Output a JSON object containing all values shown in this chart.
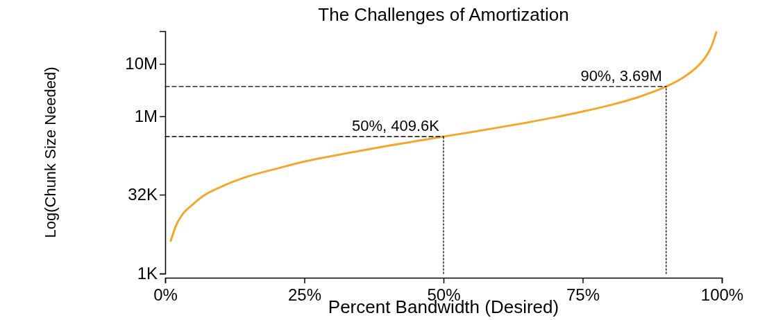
{
  "chart_data": {
    "type": "line",
    "title": "The Challenges of Amortization",
    "xlabel": "Percent Bandwidth (Desired)",
    "ylabel": "Log(Chunk Size Needed)",
    "log": "y",
    "marker": "none",
    "line_style": "solid",
    "grid": false,
    "xlim": [
      0,
      100
    ],
    "xticks": [
      {
        "value": 0,
        "label": "0%"
      },
      {
        "value": 25,
        "label": "25%"
      },
      {
        "value": 50,
        "label": "50%"
      },
      {
        "value": 75,
        "label": "75%"
      },
      {
        "value": 100,
        "label": "100%"
      }
    ],
    "ylim": [
      1000,
      42000000
    ],
    "yticks": [
      {
        "value": 1000,
        "label": "1K"
      },
      {
        "value": 32000,
        "label": "32K"
      },
      {
        "value": 1000000,
        "label": "1M"
      },
      {
        "value": 10000000,
        "label": "10M"
      }
    ],
    "series": [
      {
        "color": "#f0a830",
        "x": [
          1,
          2,
          3,
          5,
          7,
          10,
          15,
          20,
          25,
          30,
          35,
          40,
          45,
          50,
          55,
          60,
          65,
          70,
          75,
          80,
          85,
          90,
          93,
          95,
          97,
          98,
          99
        ],
        "values": [
          4200,
          8500,
          13000,
          21000,
          31000,
          45000,
          72000,
          100000,
          137000,
          175000,
          220000,
          273000,
          335000,
          409600,
          500000,
          615000,
          760000,
          955000,
          1230000,
          1640000,
          2320000,
          3690000,
          5440000,
          7780000,
          13200000,
          20000000,
          40000000
        ]
      },
      {
        "color": "#000000",
        "line_style": "dashed",
        "x": [
          0,
          50
        ],
        "values": [
          409600,
          409600
        ]
      },
      {
        "color": "#000000",
        "line_style": "dotted",
        "x": [
          50,
          50
        ],
        "values": [
          1000,
          409600
        ]
      },
      {
        "color": "#000000",
        "line_style": "dashed",
        "x": [
          0,
          90
        ],
        "values": [
          3690000,
          3690000
        ]
      },
      {
        "color": "#000000",
        "line_style": "dotted",
        "x": [
          90,
          90
        ],
        "values": [
          1000,
          3690000
        ]
      }
    ],
    "annotations": [
      {
        "text": "50%, 409.6K",
        "x": 50,
        "y": 409600
      },
      {
        "text": "90%, 3.69M",
        "x": 90,
        "y": 3690000
      }
    ]
  }
}
